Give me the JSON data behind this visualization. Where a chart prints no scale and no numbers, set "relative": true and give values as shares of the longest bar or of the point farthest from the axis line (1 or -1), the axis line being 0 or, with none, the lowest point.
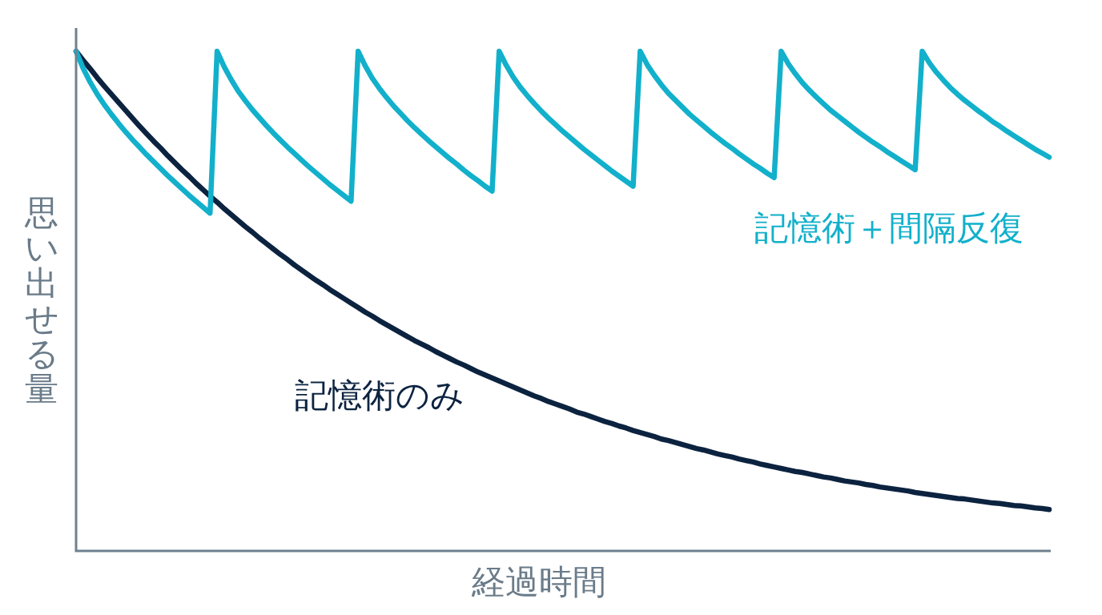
{
  "chart_data": {
    "type": "line",
    "xlabel": "経過時間",
    "ylabel": "思い出せる量",
    "relative": true,
    "legend": false,
    "grid": false,
    "marker": "none",
    "tick_labels": false,
    "categories": [
      null,
      null,
      null,
      null,
      null,
      null,
      null,
      null,
      null,
      null,
      null,
      null,
      null,
      null,
      null,
      null,
      null,
      null,
      null,
      null,
      null,
      null,
      null,
      null,
      null,
      null,
      null,
      null,
      null,
      null,
      null,
      null,
      null,
      null,
      null,
      null,
      null,
      null,
      null,
      null,
      null,
      null,
      null,
      null,
      null,
      null,
      null,
      null,
      null,
      null,
      null,
      null,
      null,
      null,
      null,
      null,
      null,
      null,
      null,
      null,
      null,
      null,
      null,
      null,
      null,
      null,
      null,
      null,
      null,
      null,
      null,
      null,
      null,
      null,
      null,
      null,
      null,
      null,
      null,
      null,
      null,
      null,
      null,
      null,
      null,
      null,
      null,
      null,
      null,
      null,
      null,
      null,
      null,
      null,
      null,
      null,
      null,
      null,
      null,
      null,
      null,
      null,
      null,
      null,
      null,
      null,
      null,
      null,
      null,
      null,
      null,
      null,
      null,
      null,
      null,
      null,
      null,
      null,
      null,
      null,
      null,
      null,
      null,
      null,
      null,
      null,
      null,
      null,
      null,
      null,
      null,
      null,
      null,
      null,
      null,
      null,
      null,
      null,
      null
    ],
    "series": [
      {
        "name": "記憶術＋間隔反復",
        "color": "#12b0cb",
        "values": [
          1,
          0.966,
          0.938,
          0.914,
          0.893,
          0.874,
          0.856,
          0.839,
          0.823,
          0.808,
          0.793,
          0.779,
          0.765,
          0.751,
          0.738,
          0.725,
          0.712,
          0.7,
          0.688,
          0.676,
          1,
          0.969,
          0.943,
          0.92,
          0.901,
          0.883,
          0.867,
          0.851,
          0.836,
          0.822,
          0.808,
          0.795,
          0.782,
          0.769,
          0.757,
          0.745,
          0.733,
          0.722,
          0.711,
          0.7,
          1,
          0.971,
          0.946,
          0.926,
          0.908,
          0.891,
          0.876,
          0.861,
          0.847,
          0.834,
          0.821,
          0.809,
          0.797,
          0.785,
          0.774,
          0.762,
          0.751,
          0.741,
          0.73,
          0.72,
          1,
          0.972,
          0.948,
          0.928,
          0.911,
          0.895,
          0.88,
          0.866,
          0.853,
          0.84,
          0.828,
          0.816,
          0.804,
          0.793,
          0.782,
          0.771,
          0.76,
          0.75,
          0.74,
          0.73,
          1,
          0.973,
          0.952,
          0.933,
          0.916,
          0.902,
          0.888,
          0.874,
          0.862,
          0.85,
          0.838,
          0.827,
          0.816,
          0.806,
          0.795,
          0.785,
          0.775,
          0.766,
          0.756,
          0.747,
          1,
          0.975,
          0.955,
          0.937,
          0.922,
          0.908,
          0.895,
          0.882,
          0.871,
          0.86,
          0.849,
          0.838,
          0.828,
          0.818,
          0.809,
          0.799,
          0.79,
          0.781,
          0.772,
          0.763,
          1,
          0.977,
          0.958,
          0.942,
          0.927,
          0.914,
          0.902,
          0.891,
          0.88,
          0.87,
          0.859,
          0.85,
          0.84,
          0.831,
          0.822,
          0.813,
          0.804,
          0.796,
          0.788
        ]
      },
      {
        "name": "記憶術のみ",
        "color": "#0c2340",
        "values": [
          1,
          0.982,
          0.965,
          0.947,
          0.93,
          0.914,
          0.898,
          0.882,
          0.866,
          0.85,
          0.835,
          0.82,
          0.806,
          0.791,
          0.777,
          0.763,
          0.75,
          0.736,
          0.723,
          0.71,
          0.698,
          0.685,
          0.673,
          0.661,
          0.649,
          0.638,
          0.626,
          0.615,
          0.604,
          0.593,
          0.583,
          0.572,
          0.562,
          0.552,
          0.542,
          0.533,
          0.523,
          0.514,
          0.505,
          0.496,
          0.487,
          0.478,
          0.47,
          0.461,
          0.453,
          0.445,
          0.437,
          0.429,
          0.421,
          0.414,
          0.407,
          0.399,
          0.392,
          0.385,
          0.378,
          0.372,
          0.365,
          0.358,
          0.352,
          0.346,
          0.34,
          0.334,
          0.328,
          0.322,
          0.316,
          0.31,
          0.305,
          0.299,
          0.294,
          0.289,
          0.284,
          0.278,
          0.274,
          0.269,
          0.264,
          0.259,
          0.255,
          0.25,
          0.246,
          0.241,
          0.237,
          0.233,
          0.229,
          0.224,
          0.221,
          0.217,
          0.213,
          0.209,
          0.205,
          0.202,
          0.198,
          0.194,
          0.191,
          0.188,
          0.184,
          0.181,
          0.178,
          0.174,
          0.171,
          0.168,
          0.165,
          0.162,
          0.159,
          0.157,
          0.154,
          0.151,
          0.148,
          0.146,
          0.143,
          0.14,
          0.138,
          0.136,
          0.133,
          0.131,
          0.128,
          0.126,
          0.124,
          0.122,
          0.12,
          0.117,
          0.115,
          0.113,
          0.111,
          0.109,
          0.107,
          0.105,
          0.104,
          0.102,
          0.1,
          0.098,
          0.096,
          0.095,
          0.093,
          0.091,
          0.09,
          0.088,
          0.086,
          0.085,
          0.083
        ]
      }
    ]
  }
}
